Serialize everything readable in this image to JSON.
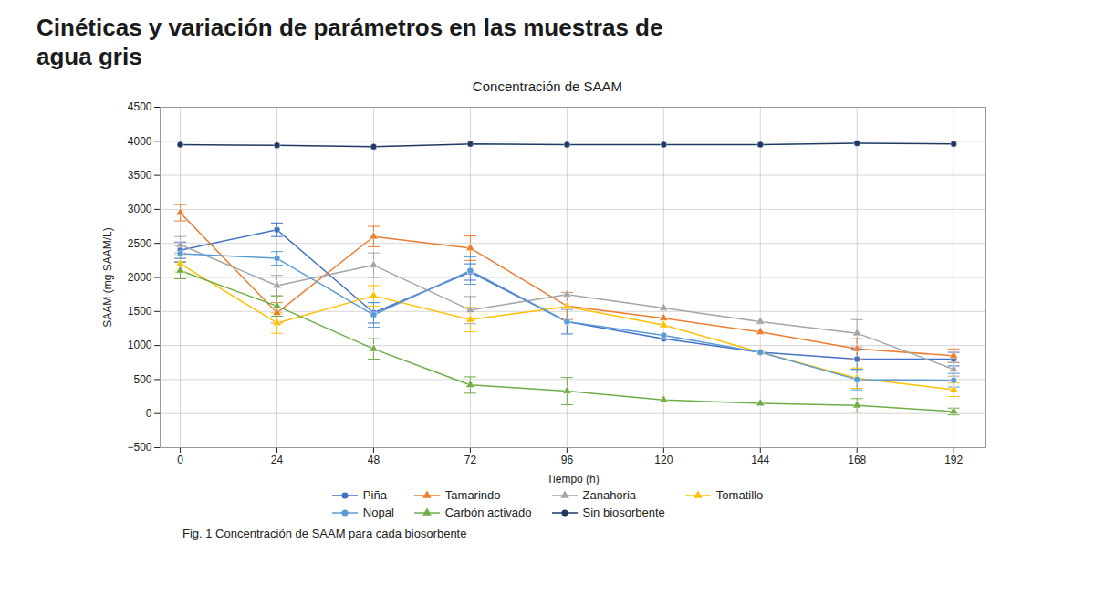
{
  "chart_data": {
    "type": "line",
    "slide_title": [
      "Cinéticas y variación de parámetros en las muestras de",
      "agua gris"
    ],
    "title": "Concentración de SAAM",
    "caption": "Fig. 1 Concentración de SAAM para cada biosorbente",
    "xlabel": "Tiempo (h)",
    "ylabel": "SAAM (mg SAAM/L)",
    "x": [
      0,
      24,
      48,
      72,
      96,
      120,
      144,
      168,
      192
    ],
    "series": [
      {
        "name": "Piña",
        "color": "#4472C4",
        "marker": "circle",
        "values": [
          2400,
          2700,
          1480,
          2080,
          1350,
          1100,
          900,
          800,
          800
        ],
        "yerr": [
          120,
          100,
          150,
          120,
          180,
          0,
          0,
          150,
          100
        ]
      },
      {
        "name": "Tamarindo",
        "color": "#ED7D31",
        "marker": "triangle",
        "values": [
          2950,
          1480,
          2600,
          2430,
          1580,
          1400,
          1200,
          950,
          850
        ],
        "yerr": [
          120,
          150,
          150,
          180,
          200,
          0,
          0,
          150,
          100
        ]
      },
      {
        "name": "Zanahoria",
        "color": "#A5A5A5",
        "marker": "triangle",
        "values": [
          2480,
          1880,
          2180,
          1520,
          1750,
          1550,
          1350,
          1180,
          650
        ],
        "yerr": [
          120,
          150,
          180,
          200,
          0,
          0,
          0,
          200,
          100
        ]
      },
      {
        "name": "Tomatillo",
        "color": "#FFC000",
        "marker": "triangle",
        "values": [
          2200,
          1330,
          1730,
          1380,
          1570,
          1300,
          900,
          520,
          350
        ],
        "yerr": [
          120,
          150,
          150,
          180,
          0,
          0,
          0,
          150,
          100
        ]
      },
      {
        "name": "Nopal",
        "color": "#5B9BD5",
        "marker": "circle",
        "values": [
          2350,
          2280,
          1450,
          2100,
          1350,
          1150,
          900,
          500,
          490
        ],
        "yerr": [
          120,
          100,
          180,
          200,
          0,
          0,
          0,
          150,
          100
        ]
      },
      {
        "name": "Carbón activado",
        "color": "#70AD47",
        "marker": "triangle",
        "values": [
          2100,
          1580,
          950,
          420,
          330,
          200,
          150,
          120,
          30
        ],
        "yerr": [
          120,
          150,
          150,
          120,
          200,
          0,
          0,
          100,
          50
        ]
      },
      {
        "name": "Sin biosorbente",
        "color": "#1F3864",
        "marker": "circle",
        "values": [
          3950,
          3940,
          3920,
          3960,
          3950,
          3950,
          3950,
          3970,
          3960
        ],
        "yerr": [
          0,
          0,
          0,
          0,
          0,
          0,
          0,
          0,
          0
        ]
      }
    ],
    "xlim": [
      -5,
      200
    ],
    "xticks": [
      0,
      24,
      48,
      72,
      96,
      120,
      144,
      168,
      192
    ],
    "ylim": [
      -500,
      4500
    ],
    "yticks": [
      -500,
      0,
      500,
      1000,
      1500,
      2000,
      2500,
      3000,
      3500,
      4000,
      4500
    ],
    "grid": true,
    "legend": "bottom"
  }
}
